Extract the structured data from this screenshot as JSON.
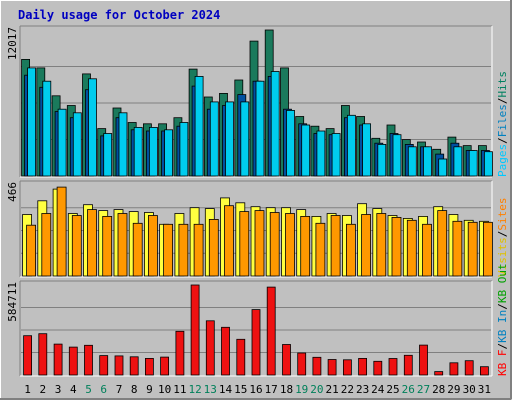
{
  "chart_data": {
    "type": "bar",
    "title": "Daily usage for October 2024",
    "categories": [
      "1",
      "2",
      "3",
      "4",
      "5",
      "6",
      "7",
      "8",
      "9",
      "10",
      "11",
      "12",
      "13",
      "14",
      "15",
      "16",
      "17",
      "18",
      "19",
      "20",
      "21",
      "22",
      "23",
      "24",
      "25",
      "26",
      "27",
      "28",
      "29",
      "30",
      "31"
    ],
    "weekend_days": [
      "5",
      "6",
      "12",
      "13",
      "19",
      "20",
      "26",
      "27"
    ],
    "panels": [
      {
        "name": "pages-files-hits",
        "ymax_label": "12017",
        "ymax": 12017,
        "legend": [
          {
            "text": "Pages",
            "color": "#00c8ff"
          },
          {
            "text": "Files",
            "color": "#0080c0"
          },
          {
            "text": "Hits",
            "color": "#008060"
          }
        ],
        "series": [
          {
            "name": "Hits",
            "color": "#1a7a5c",
            "values": [
              9600,
              8900,
              6600,
              5800,
              8400,
              3900,
              5600,
              4400,
              4300,
              4300,
              4800,
              8800,
              6500,
              6800,
              7900,
              11100,
              12017,
              8900,
              4900,
              4100,
              3900,
              5800,
              4900,
              3100,
              4200,
              3000,
              2800,
              2200,
              3200,
              2500,
              2500
            ]
          },
          {
            "name": "Files",
            "color": "#0050a0",
            "values": [
              8300,
              7300,
              5300,
              4800,
              7100,
              3300,
              4800,
              3800,
              3700,
              3700,
              4100,
              7400,
              5500,
              5800,
              6700,
              7800,
              8200,
              5500,
              4300,
              3500,
              3400,
              4800,
              4200,
              2700,
              3500,
              2600,
              2400,
              1800,
              2700,
              2100,
              2100
            ]
          },
          {
            "name": "Pages",
            "color": "#00ccee",
            "values": [
              8900,
              7800,
              5500,
              5200,
              8000,
              3500,
              5200,
              4000,
              4000,
              3800,
              4400,
              8200,
              6100,
              6100,
              6100,
              7800,
              8600,
              5400,
              4200,
              3700,
              3500,
              5000,
              4300,
              2600,
              3400,
              2400,
              2400,
              1400,
              2400,
              2100,
              2000
            ]
          }
        ]
      },
      {
        "name": "visits-sites",
        "ymax_label": "466",
        "ymax": 466,
        "legend": [
          {
            "text": "Visits",
            "color": "#e0c000"
          },
          {
            "text": "Sites",
            "color": "#ff8000"
          }
        ],
        "series": [
          {
            "name": "Visits",
            "color": "#ffff40",
            "values": [
              315,
              385,
              445,
              320,
              365,
              335,
              340,
              330,
              325,
              265,
              320,
              350,
              345,
              400,
              375,
              355,
              350,
              350,
              340,
              305,
              320,
              310,
              370,
              345,
              310,
              295,
              305,
              355,
              315,
              285,
              280
            ]
          },
          {
            "name": "Sites",
            "color": "#ff9800",
            "values": [
              260,
              320,
              455,
              310,
              340,
              305,
              320,
              270,
              310,
              265,
              265,
              265,
              290,
              360,
              330,
              335,
              325,
              320,
              305,
              270,
              310,
              265,
              315,
              320,
              300,
              285,
              265,
              335,
              280,
              275,
              275
            ]
          }
        ]
      },
      {
        "name": "kbf-kbin-kbout",
        "ymax_label": "584711",
        "ymax": 584711,
        "legend": [
          {
            "text": "KB F",
            "color": "#ff0000"
          },
          {
            "text": "KB In",
            "color": "#0080c0"
          },
          {
            "text": "KB Out",
            "color": "#00a000"
          }
        ],
        "series": [
          {
            "name": "KB F",
            "color": "#ee1111",
            "values": [
              255000,
              268000,
              201000,
              181000,
              193000,
              126000,
              124000,
              118000,
              108000,
              116000,
              284000,
              584711,
              352000,
              310000,
              232000,
              425000,
              571000,
              198000,
              143000,
              115000,
              101000,
              99000,
              108000,
              89000,
              107000,
              128000,
              194000,
              22000,
              79000,
              93000,
              54000
            ]
          }
        ]
      }
    ]
  }
}
